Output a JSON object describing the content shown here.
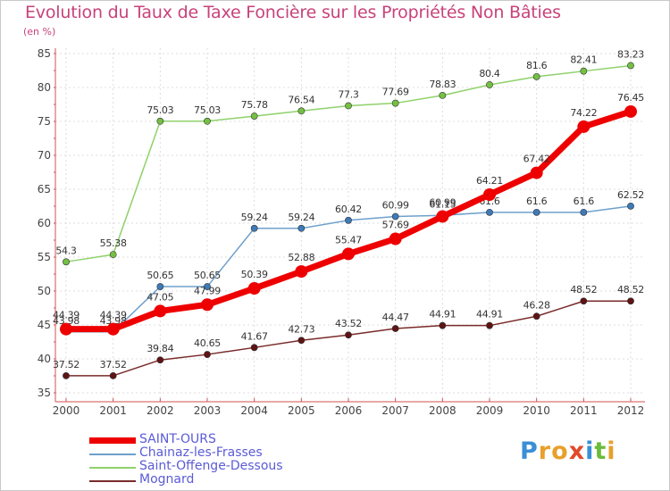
{
  "title": "Evolution du Taux de Taxe Foncière sur les Propriétés Non Bâties",
  "subtitle": "(en %)",
  "brand": {
    "letters": [
      "P",
      "r",
      "o",
      "x",
      "i",
      "t",
      "i"
    ],
    "colors": [
      "#3a8fd6",
      "#e8a02a",
      "#e8a02a",
      "#e04a2a",
      "#3a8fd6",
      "#6cbb3c",
      "#e8a02a"
    ]
  },
  "chart_data": {
    "type": "line",
    "x": [
      "2000",
      "2001",
      "2002",
      "2003",
      "2004",
      "2005",
      "2006",
      "2007",
      "2008",
      "2009",
      "2010",
      "2011",
      "2012"
    ],
    "ylim": [
      35,
      85
    ],
    "yticks": [
      35,
      40,
      45,
      50,
      55,
      60,
      65,
      70,
      75,
      80,
      85
    ],
    "grid": true,
    "legend_position": "bottom",
    "series": [
      {
        "name": "Saint-Offenge-Dessous",
        "color": "#8fd16a",
        "marker": "#74c043",
        "width": 1.5,
        "values": [
          54.3,
          55.38,
          75.03,
          75.03,
          75.78,
          76.54,
          77.3,
          77.69,
          78.83,
          80.4,
          81.6,
          82.41,
          83.23
        ],
        "labels": [
          "54.3",
          "55.38",
          "75.03",
          "75.03",
          "75.78",
          "76.54",
          "77.3",
          "77.69",
          "78.83",
          "80.4",
          "81.6",
          "82.41",
          "83.23"
        ]
      },
      {
        "name": "Chainaz-les-Frasses",
        "color": "#6fa0cc",
        "marker": "#3d7ab8",
        "width": 1.5,
        "values": [
          43.98,
          43.98,
          50.65,
          50.65,
          59.24,
          59.24,
          60.42,
          60.99,
          61.15,
          61.6,
          61.6,
          61.6,
          62.52
        ],
        "labels": [
          "43.98",
          "43.98",
          "50.65",
          "50.65",
          "59.24",
          "59.24",
          "60.42",
          "60.99",
          "61.15",
          "61.6",
          "61.6",
          "61.6",
          "62.52"
        ]
      },
      {
        "name": "Mognard",
        "color": "#7a2a2a",
        "marker": "#5e1414",
        "width": 1.5,
        "values": [
          37.52,
          37.52,
          39.84,
          40.65,
          41.67,
          42.73,
          43.52,
          44.47,
          44.91,
          44.91,
          46.28,
          48.52,
          48.52
        ],
        "labels": [
          "37.52",
          "37.52",
          "39.84",
          "40.65",
          "41.67",
          "42.73",
          "43.52",
          "44.47",
          "44.91",
          "44.91",
          "46.28",
          "48.52",
          "48.52"
        ]
      },
      {
        "name": "SAINT-OURS",
        "color": "#ee0000",
        "marker": "#ee0000",
        "width": 7,
        "values": [
          44.39,
          44.39,
          47.05,
          47.99,
          50.39,
          52.88,
          55.47,
          57.69,
          60.99,
          64.21,
          67.42,
          74.22,
          76.45
        ],
        "labels": [
          "44.39",
          "44.39",
          "47.05",
          "47.99",
          "50.39",
          "52.88",
          "55.47",
          "57.69",
          "60.99",
          "64.21",
          "67.42",
          "74.22",
          "76.45"
        ]
      }
    ],
    "legend": [
      "SAINT-OURS",
      "Chainaz-les-Frasses",
      "Saint-Offenge-Dessous",
      "Mognard"
    ]
  }
}
